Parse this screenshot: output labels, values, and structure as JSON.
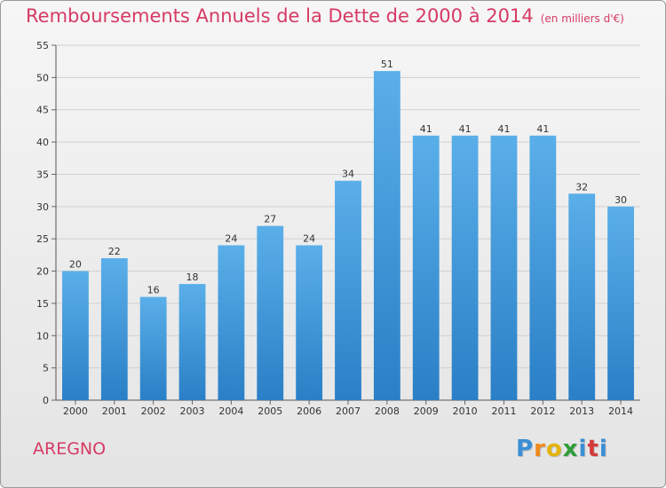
{
  "chart_data": {
    "type": "bar",
    "title": "Remboursements Annuels de la Dette de 2000 à 2014",
    "subtitle": "(en milliers d'€)",
    "categories": [
      "2000",
      "2001",
      "2002",
      "2003",
      "2004",
      "2005",
      "2006",
      "2007",
      "2008",
      "2009",
      "2010",
      "2011",
      "2012",
      "2013",
      "2014"
    ],
    "values": [
      20,
      22,
      16,
      18,
      24,
      27,
      24,
      34,
      51,
      41,
      41,
      41,
      41,
      32,
      30
    ],
    "xlabel": "",
    "ylabel": "",
    "ylim": [
      0,
      55
    ],
    "yticks": [
      0,
      5,
      10,
      15,
      20,
      25,
      30,
      35,
      40,
      45,
      50,
      55
    ],
    "grid": true,
    "bar_color": "#4a9ee0"
  },
  "commune": "AREGNO",
  "logo": {
    "letters": [
      "P",
      "r",
      "o",
      "x",
      "i",
      "t",
      "i"
    ],
    "colors": [
      "#3a8fd6",
      "#f08a1c",
      "#e5b40c",
      "#2f9d3a",
      "#3a8fd6",
      "#d63a3a",
      "#3a8fd6"
    ]
  }
}
